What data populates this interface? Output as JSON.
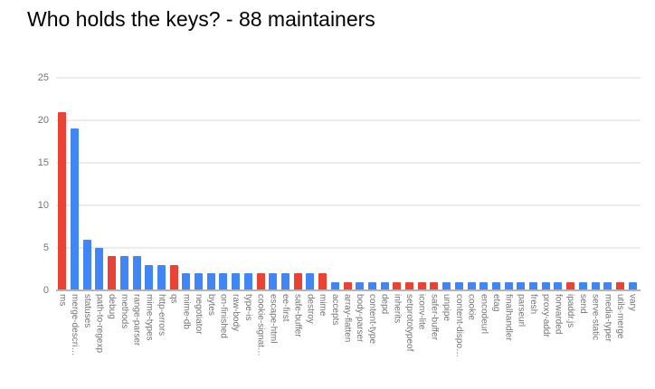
{
  "header": {
    "title": "Who holds the keys? - 88 maintainers"
  },
  "chart_data": {
    "type": "bar",
    "title": "Who holds the keys? - 88 maintainers",
    "xlabel": "",
    "ylabel": "",
    "ylim": [
      0,
      25
    ],
    "yticks": [
      0,
      5,
      10,
      15,
      20,
      25
    ],
    "grid": true,
    "legend": "none",
    "palette": {
      "blue": "#4285f4",
      "red": "#ea4335"
    },
    "grid_color": "#ececec",
    "baseline_color": "#b5b5b5",
    "axis_text_color": "#757575",
    "categories": [
      "ms",
      "merge-descri…",
      "statuses",
      "path-to-regexp",
      "debug",
      "methods",
      "range-parser",
      "mime-types",
      "http-errors",
      "qs",
      "mime-db",
      "negotiator",
      "bytes",
      "on-finished",
      "raw-body",
      "type-is",
      "cookie-signat…",
      "escape-html",
      "ee-first",
      "safe-buffer",
      "destroy",
      "mime",
      "accepts",
      "array-flatten",
      "body-parser",
      "content-type",
      "depd",
      "inherits",
      "setprototypeof",
      "iconv-lite",
      "safer-buffer",
      "unpipe",
      "content-dispo…",
      "cookie",
      "encodeurl",
      "etag",
      "finalhandler",
      "parseurl",
      "fresh",
      "proxy-addr",
      "forwarded",
      "ipaddr.js",
      "send",
      "serve-static",
      "media-typer",
      "utils-merge",
      "vary"
    ],
    "values": [
      21,
      19,
      6,
      5,
      4,
      4,
      4,
      3,
      3,
      3,
      2,
      2,
      2,
      2,
      2,
      2,
      2,
      2,
      2,
      2,
      2,
      2,
      1,
      1,
      1,
      1,
      1,
      1,
      1,
      1,
      1,
      1,
      1,
      1,
      1,
      1,
      1,
      1,
      1,
      1,
      1,
      1,
      1,
      1,
      1,
      1,
      1
    ],
    "colors": [
      "red",
      "blue",
      "blue",
      "blue",
      "red",
      "blue",
      "blue",
      "blue",
      "blue",
      "red",
      "blue",
      "blue",
      "blue",
      "blue",
      "blue",
      "blue",
      "red",
      "blue",
      "blue",
      "red",
      "blue",
      "red",
      "blue",
      "red",
      "blue",
      "blue",
      "blue",
      "red",
      "red",
      "red",
      "red",
      "blue",
      "blue",
      "blue",
      "blue",
      "blue",
      "blue",
      "blue",
      "blue",
      "blue",
      "blue",
      "red",
      "blue",
      "blue",
      "blue",
      "red",
      "blue"
    ]
  }
}
